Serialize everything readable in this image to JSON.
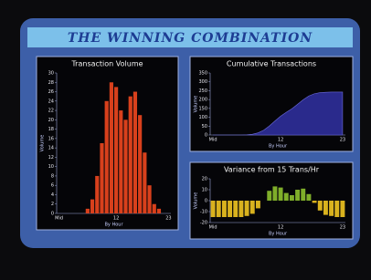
{
  "title": "THE WINNING COMBINATION",
  "chart_data": [
    {
      "type": "bar",
      "title": "Transaction Volume",
      "x_label": "By Hour",
      "y_label": "Volume",
      "categories": [
        "Mid",
        null,
        null,
        null,
        null,
        null,
        null,
        null,
        null,
        null,
        null,
        null,
        "12",
        null,
        null,
        null,
        null,
        null,
        null,
        null,
        null,
        null,
        null,
        "23"
      ],
      "values": [
        0,
        0,
        0,
        0,
        0,
        0,
        1,
        3,
        8,
        15,
        24,
        28,
        27,
        22,
        20,
        25,
        26,
        21,
        13,
        6,
        2,
        1,
        0,
        0
      ],
      "color": "#d8401c",
      "ylim": [
        0,
        30
      ],
      "yticks": [
        0,
        2,
        4,
        6,
        8,
        10,
        12,
        14,
        16,
        18,
        20,
        22,
        24,
        26,
        28,
        30
      ]
    },
    {
      "type": "area",
      "title": "Cumulative Transactions",
      "x_label": "By Hour",
      "y_label": "Volume",
      "categories": [
        "Mid",
        null,
        null,
        null,
        null,
        null,
        null,
        null,
        null,
        null,
        null,
        null,
        "12",
        null,
        null,
        null,
        null,
        null,
        null,
        null,
        null,
        null,
        null,
        "23"
      ],
      "values": [
        0,
        0,
        0,
        0,
        0,
        0,
        1,
        4,
        12,
        27,
        51,
        79,
        106,
        128,
        148,
        173,
        199,
        220,
        233,
        239,
        241,
        242,
        242,
        242
      ],
      "color": "#2a2a8c",
      "ylim": [
        0,
        350
      ],
      "yticks": [
        0,
        50,
        100,
        150,
        200,
        250,
        300,
        350
      ]
    },
    {
      "type": "bar",
      "title": "Variance from 15 Trans/Hr",
      "x_label": "By Hour",
      "y_label": "Volume",
      "categories": [
        "Mid",
        null,
        null,
        null,
        null,
        null,
        null,
        null,
        null,
        null,
        null,
        null,
        "12",
        null,
        null,
        null,
        null,
        null,
        null,
        null,
        null,
        null,
        null,
        "23"
      ],
      "values": [
        -15,
        -15,
        -15,
        -15,
        -15,
        -15,
        -14,
        -12,
        -7,
        0,
        9,
        13,
        12,
        7,
        5,
        10,
        11,
        6,
        -2,
        -9,
        -13,
        -14,
        -15,
        -15
      ],
      "color": "#7fae2a",
      "negative_color": "#d9b21e",
      "ylim": [
        -20,
        20
      ],
      "yticks": [
        -20,
        -10,
        0,
        10,
        20
      ]
    }
  ]
}
